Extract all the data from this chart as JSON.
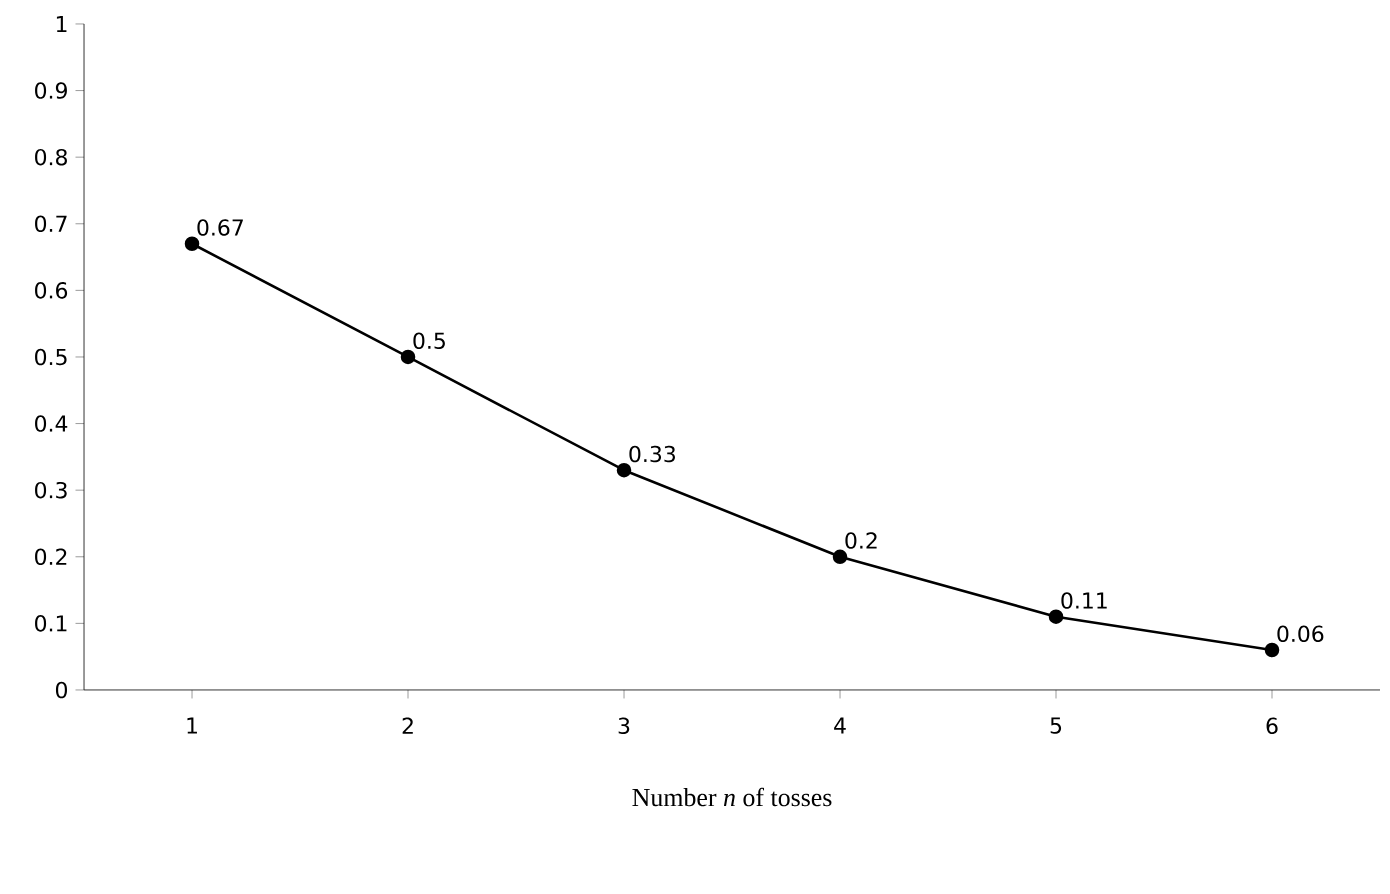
{
  "chart_data": {
    "type": "line",
    "xlabel": "Number *n* of tosses",
    "x": [
      1,
      2,
      3,
      4,
      5,
      6
    ],
    "values": [
      0.67,
      0.5,
      0.33,
      0.2,
      0.11,
      0.06
    ],
    "color": "#000000",
    "xlim": [
      0.5,
      6.5
    ],
    "xticks": [
      1,
      2,
      3,
      4,
      5,
      6
    ],
    "ylim": [
      0,
      1
    ],
    "yticks": [
      0,
      0.1,
      0.2,
      0.3,
      0.4,
      0.5,
      0.6,
      0.7,
      0.8,
      0.9,
      1
    ],
    "data_labels": true,
    "marker": "circle",
    "line_style": "solid"
  }
}
